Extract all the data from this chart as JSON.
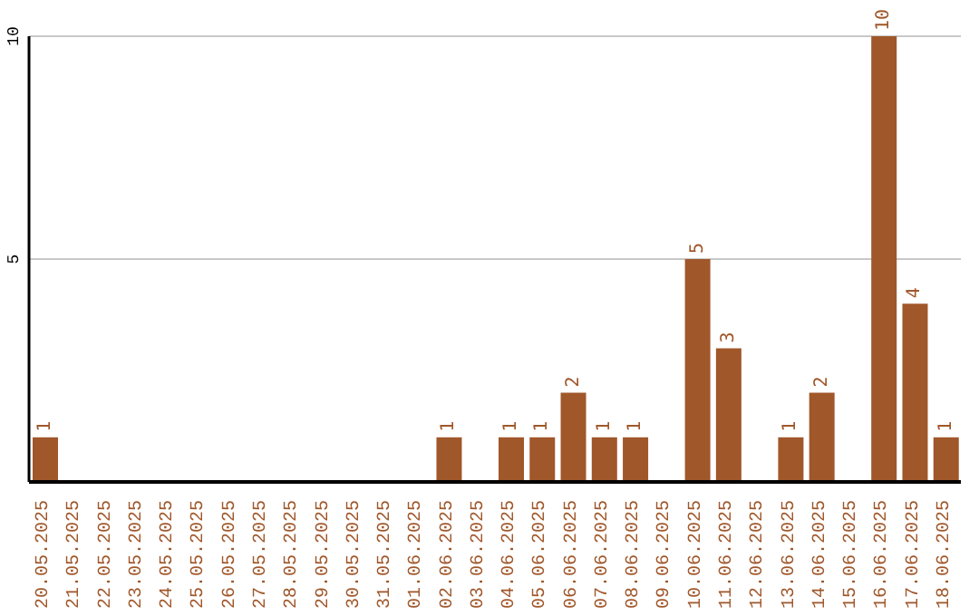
{
  "chart_data": {
    "type": "bar",
    "categories": [
      "20.05.2025",
      "21.05.2025",
      "22.05.2025",
      "23.05.2025",
      "24.05.2025",
      "25.05.2025",
      "26.05.2025",
      "27.05.2025",
      "28.05.2025",
      "29.05.2025",
      "30.05.2025",
      "31.05.2025",
      "01.06.2025",
      "02.06.2025",
      "03.06.2025",
      "04.06.2025",
      "05.06.2025",
      "06.06.2025",
      "07.06.2025",
      "08.06.2025",
      "09.06.2025",
      "10.06.2025",
      "11.06.2025",
      "12.06.2025",
      "13.06.2025",
      "14.06.2025",
      "15.06.2025",
      "16.06.2025",
      "17.06.2025",
      "18.06.2025"
    ],
    "values": [
      1,
      0,
      0,
      0,
      0,
      0,
      0,
      0,
      0,
      0,
      0,
      0,
      0,
      1,
      0,
      1,
      1,
      2,
      1,
      1,
      0,
      5,
      3,
      0,
      1,
      2,
      0,
      10,
      4,
      1
    ],
    "value_labels": [
      "1",
      null,
      null,
      null,
      null,
      null,
      null,
      null,
      null,
      null,
      null,
      null,
      null,
      "1",
      null,
      "1",
      "1",
      "2",
      "1",
      "1",
      null,
      "5",
      "3",
      null,
      "1",
      "2",
      null,
      "10",
      "4",
      "1"
    ],
    "color": "#a0572a",
    "ylim": [
      0,
      10
    ],
    "yticks": [
      {
        "value": 0,
        "label": null
      },
      5,
      10
    ],
    "grid": "y"
  }
}
